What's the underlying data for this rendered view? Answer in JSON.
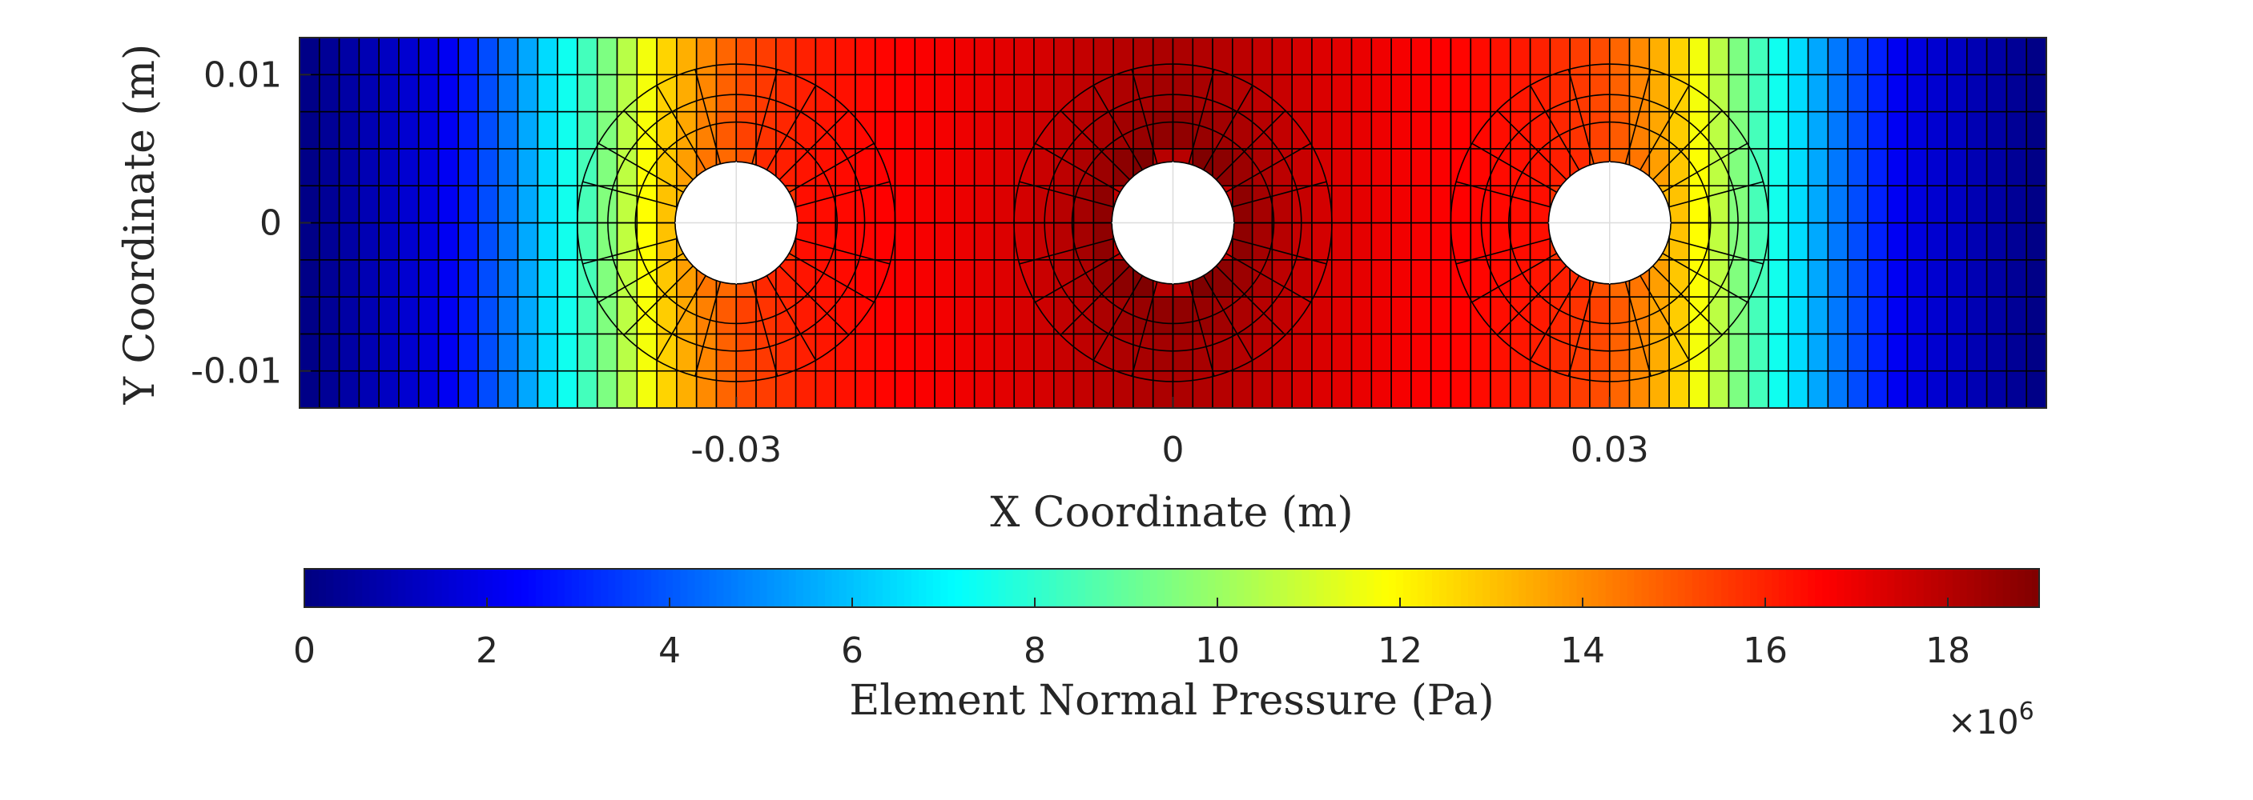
{
  "chart_data": {
    "type": "heatmap",
    "title": "",
    "xlabel": "X Coordinate (m)",
    "ylabel": "Y Coordinate (m)",
    "xlim": [
      -0.06,
      0.06
    ],
    "ylim": [
      -0.0125,
      0.0125
    ],
    "x_ticks": [
      -0.03,
      0,
      0.03
    ],
    "x_tick_labels": [
      "-0.03",
      "0",
      "0.03"
    ],
    "y_ticks": [
      -0.01,
      0,
      0.01
    ],
    "y_tick_labels": [
      "-0.01",
      "0",
      "0.01"
    ],
    "holes": [
      {
        "cx": -0.03,
        "cy": 0,
        "r": 0.0042
      },
      {
        "cx": 0,
        "cy": 0,
        "r": 0.0042
      },
      {
        "cx": 0.03,
        "cy": 0,
        "r": 0.0042
      }
    ],
    "colormap": "jet",
    "grid": true,
    "colorbar": {
      "label": "Element Normal Pressure (Pa)",
      "location": "bottom",
      "range": [
        0,
        19000000
      ],
      "ticks": [
        0,
        2,
        4,
        6,
        8,
        10,
        12,
        14,
        16,
        18
      ],
      "tick_labels": [
        "0",
        "2",
        "4",
        "6",
        "8",
        "10",
        "12",
        "14",
        "16",
        "18"
      ],
      "multiplier_base": "×10",
      "multiplier_exponent": "6"
    },
    "field": {
      "units": "Pa",
      "pressure_at_left_and_right_edges": 0,
      "pressure_at_x_profile": {
        "x": [
          -0.06,
          -0.05,
          -0.045,
          -0.04,
          -0.035,
          -0.03,
          -0.025,
          -0.02,
          -0.015,
          -0.01,
          -0.005,
          0
        ],
        "p": [
          0,
          2000000,
          5000000,
          8500000,
          12500000,
          15000000,
          16000000,
          16500000,
          16800000,
          17200000,
          17700000,
          18000000
        ]
      },
      "max_pressure": 19000000,
      "symmetric_about_x": 0
    }
  }
}
